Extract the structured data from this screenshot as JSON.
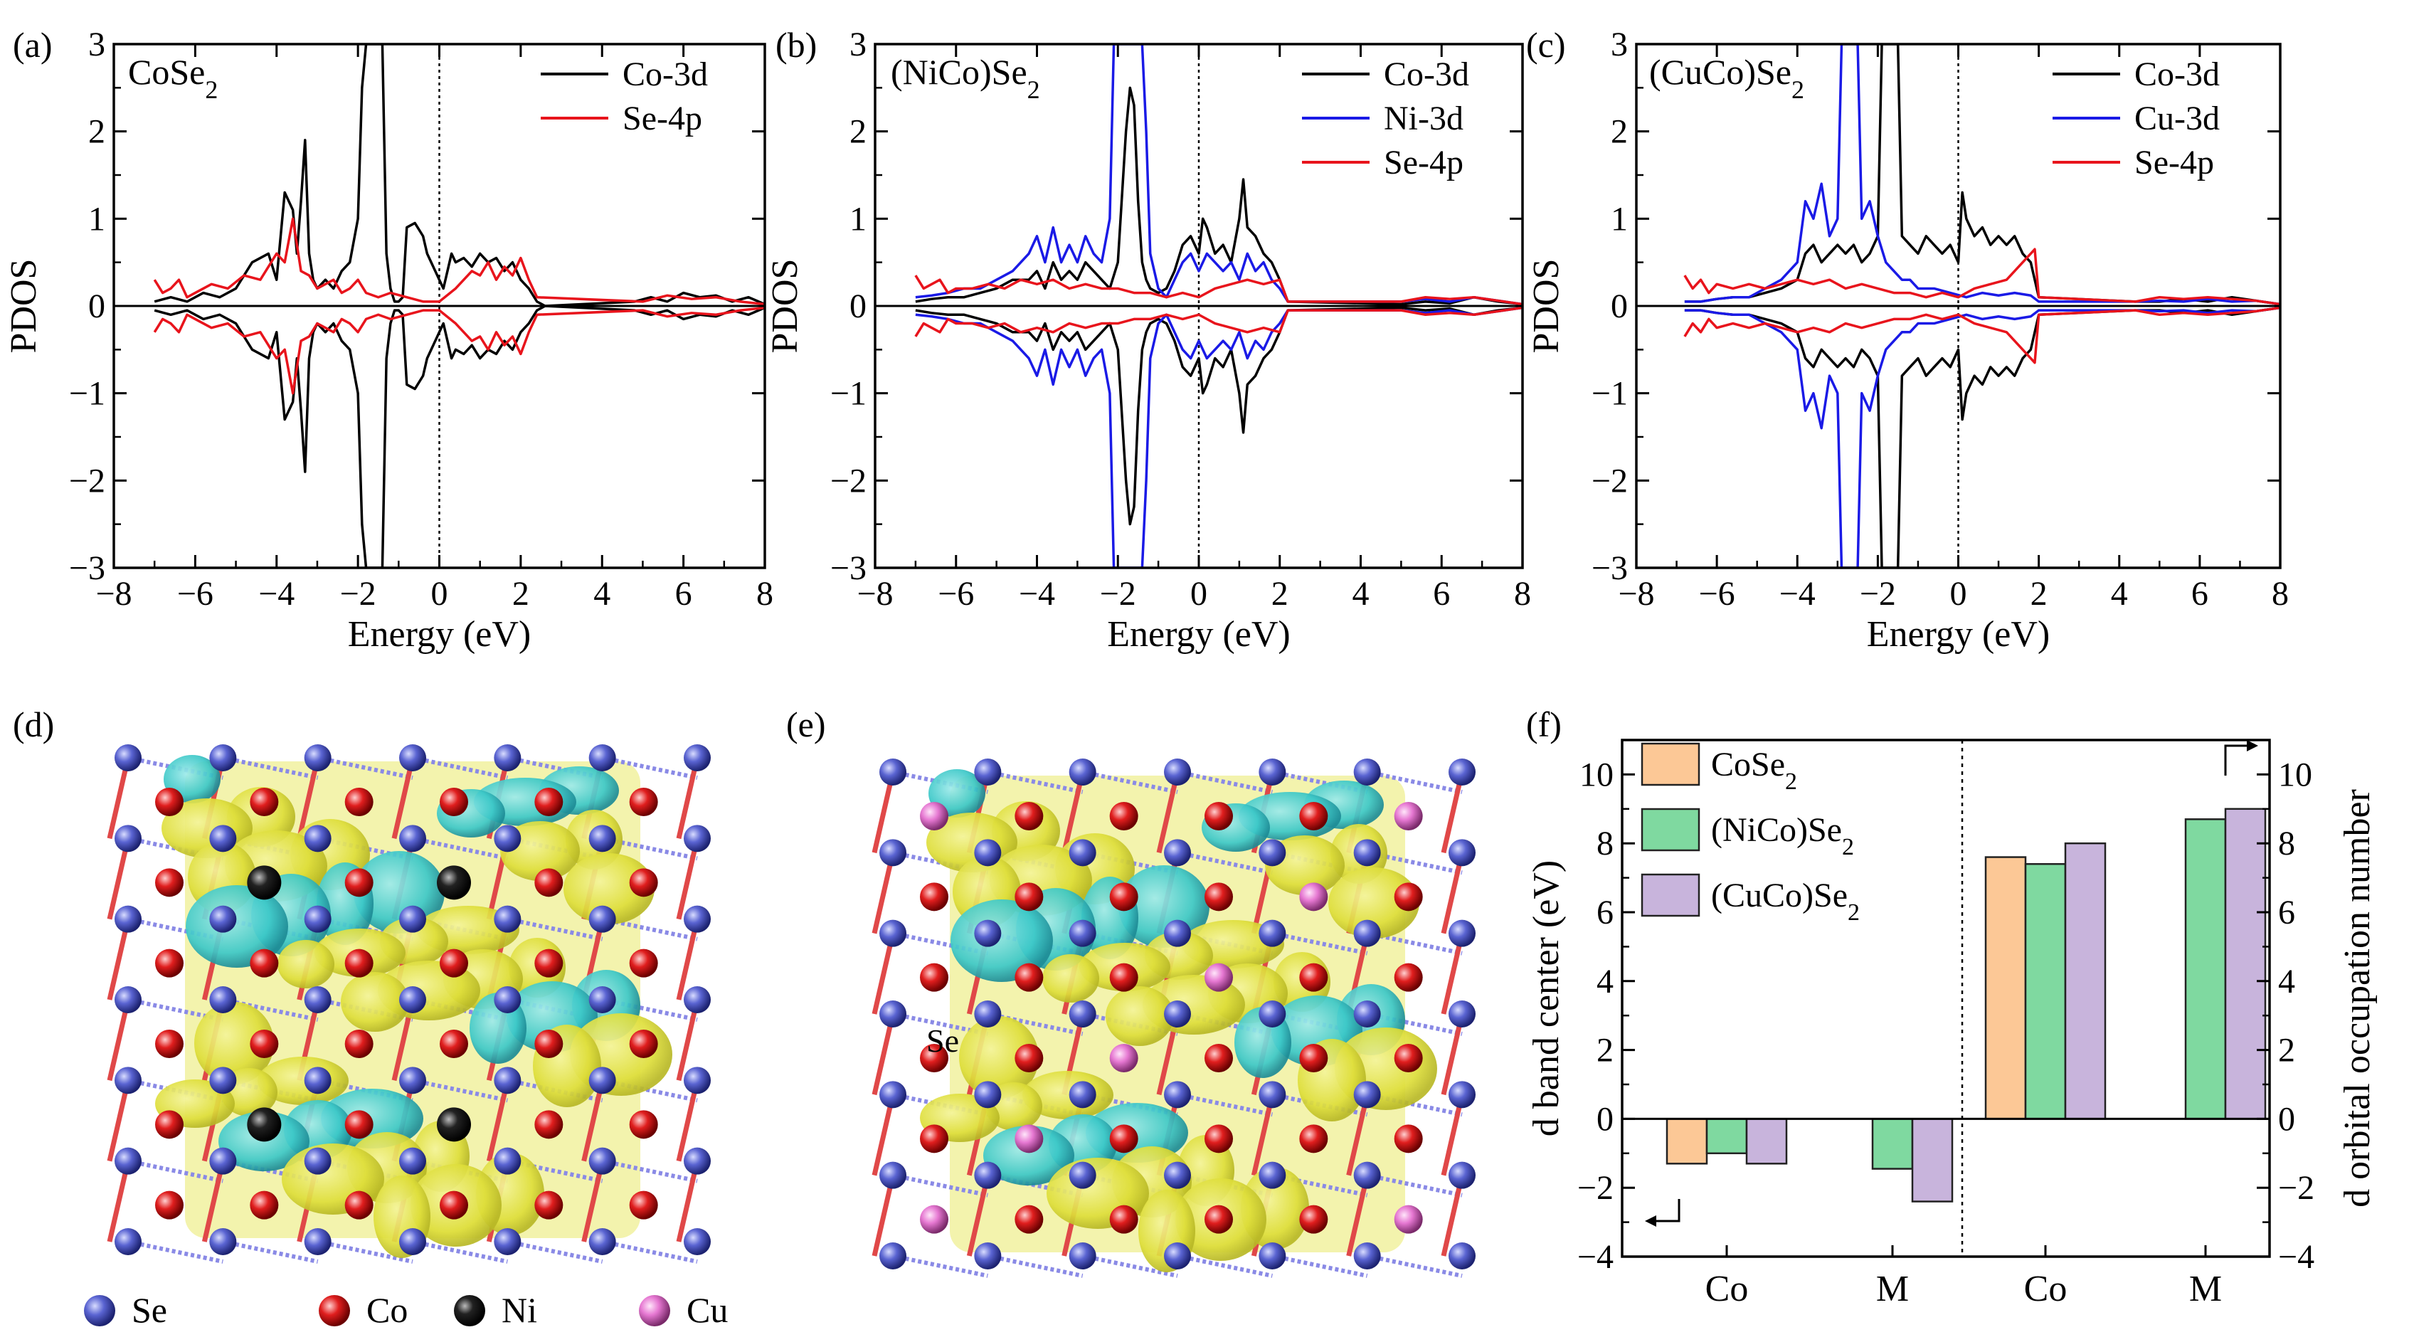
{
  "figure_labels": {
    "a": "(a)",
    "b": "(b)",
    "c": "(c)",
    "d": "(d)",
    "e": "(e)",
    "f": "(f)"
  },
  "colors": {
    "black": "#000000",
    "red": "#e8141c",
    "blue": "#1a1ae6",
    "orange": "#fcc896",
    "green": "#7fd9a0",
    "purple": "#c8b4dc",
    "se_atom": "#5a64d2",
    "co_atom": "#e01e1e",
    "ni_atom": "#1a1a1a",
    "cu_atom": "#e678d2",
    "iso_yellow": "#e6e63c",
    "iso_cyan": "#3cc8c8"
  },
  "chart_data": [
    {
      "id": "a",
      "type": "line",
      "title_main": "CoSe",
      "title_sub": "2",
      "title_tail": "",
      "xlabel": "Energy (eV)",
      "ylabel": "PDOS",
      "xlim": [
        -8,
        8
      ],
      "ylim": [
        -3,
        3
      ],
      "xticks": [
        -8,
        -6,
        -4,
        -2,
        0,
        2,
        4,
        6,
        8
      ],
      "yticks": [
        -3,
        -2,
        -1,
        0,
        1,
        2,
        3
      ],
      "fermi_level": 0,
      "series": [
        {
          "name": "Co-3d",
          "color": "#000000",
          "mirror": true,
          "x": [
            -7.0,
            -6.6,
            -6.2,
            -5.8,
            -5.4,
            -5.0,
            -4.6,
            -4.2,
            -4.0,
            -3.8,
            -3.6,
            -3.5,
            -3.4,
            -3.3,
            -3.2,
            -3.1,
            -3.0,
            -2.8,
            -2.6,
            -2.4,
            -2.2,
            -2.0,
            -1.9,
            -1.8,
            -1.7,
            -1.6,
            -1.5,
            -1.4,
            -1.3,
            -1.2,
            -1.1,
            -1.0,
            -0.9,
            -0.8,
            -0.6,
            -0.4,
            -0.3,
            -0.2,
            -0.1,
            0.0,
            0.1,
            0.2,
            0.3,
            0.4,
            0.6,
            0.8,
            1.0,
            1.2,
            1.4,
            1.6,
            1.8,
            2.0,
            2.2,
            2.4,
            2.6,
            4.8,
            5.2,
            5.6,
            6.0,
            6.4,
            6.8,
            7.2,
            7.6,
            8.0
          ],
          "y": [
            0.05,
            0.1,
            0.05,
            0.15,
            0.1,
            0.2,
            0.5,
            0.6,
            0.3,
            1.3,
            1.1,
            0.6,
            1.2,
            1.9,
            0.6,
            0.3,
            0.2,
            0.3,
            0.2,
            0.4,
            0.5,
            1.0,
            2.5,
            3.0,
            3.0,
            3.0,
            3.0,
            3.0,
            0.6,
            0.2,
            0.05,
            0.05,
            0.1,
            0.9,
            0.95,
            0.8,
            0.6,
            0.5,
            0.4,
            0.3,
            0.2,
            0.4,
            0.6,
            0.5,
            0.55,
            0.45,
            0.6,
            0.5,
            0.55,
            0.4,
            0.5,
            0.3,
            0.2,
            0.05,
            0.0,
            0.05,
            0.1,
            0.05,
            0.15,
            0.1,
            0.12,
            0.05,
            0.1,
            0.02
          ]
        },
        {
          "name": "Se-4p",
          "color": "#e8141c",
          "mirror": true,
          "x": [
            -7.0,
            -6.8,
            -6.6,
            -6.4,
            -6.2,
            -6.0,
            -5.6,
            -5.2,
            -4.8,
            -4.4,
            -4.0,
            -3.8,
            -3.6,
            -3.4,
            -3.2,
            -3.0,
            -2.8,
            -2.6,
            -2.4,
            -2.2,
            -2.0,
            -1.8,
            -1.5,
            -1.2,
            -0.8,
            -0.4,
            0.0,
            0.4,
            0.8,
            1.0,
            1.2,
            1.4,
            1.6,
            1.8,
            2.0,
            2.2,
            2.4,
            5.0,
            5.6,
            6.2,
            6.8,
            7.4,
            8.0
          ],
          "y": [
            0.3,
            0.15,
            0.2,
            0.3,
            0.1,
            0.15,
            0.25,
            0.2,
            0.35,
            0.3,
            0.6,
            0.5,
            1.0,
            0.4,
            0.35,
            0.2,
            0.25,
            0.3,
            0.15,
            0.2,
            0.3,
            0.15,
            0.1,
            0.15,
            0.1,
            0.05,
            0.05,
            0.2,
            0.4,
            0.35,
            0.5,
            0.3,
            0.45,
            0.35,
            0.55,
            0.3,
            0.1,
            0.05,
            0.12,
            0.08,
            0.1,
            0.05,
            0.02
          ]
        }
      ]
    },
    {
      "id": "b",
      "type": "line",
      "title_main": "(NiCo)Se",
      "title_sub": "2",
      "title_tail": "",
      "xlabel": "Energy (eV)",
      "ylabel": "PDOS",
      "xlim": [
        -8,
        8
      ],
      "ylim": [
        -3,
        3
      ],
      "xticks": [
        -8,
        -6,
        -4,
        -2,
        0,
        2,
        4,
        6,
        8
      ],
      "yticks": [
        -3,
        -2,
        -1,
        0,
        1,
        2,
        3
      ],
      "fermi_level": 0,
      "series": [
        {
          "name": "Co-3d",
          "color": "#000000",
          "mirror": true,
          "x": [
            -7.0,
            -6.6,
            -6.2,
            -5.8,
            -5.4,
            -5.0,
            -4.6,
            -4.2,
            -4.0,
            -3.8,
            -3.6,
            -3.4,
            -3.2,
            -3.0,
            -2.8,
            -2.6,
            -2.4,
            -2.2,
            -2.0,
            -1.8,
            -1.7,
            -1.6,
            -1.5,
            -1.4,
            -1.3,
            -1.2,
            -1.0,
            -0.8,
            -0.6,
            -0.4,
            -0.2,
            0.0,
            0.1,
            0.2,
            0.4,
            0.6,
            0.8,
            1.0,
            1.1,
            1.2,
            1.4,
            1.6,
            1.8,
            2.0,
            2.2,
            5.0,
            5.6,
            6.2,
            6.8,
            7.4,
            8.0
          ],
          "y": [
            0.05,
            0.08,
            0.1,
            0.1,
            0.15,
            0.2,
            0.3,
            0.3,
            0.4,
            0.2,
            0.5,
            0.3,
            0.4,
            0.3,
            0.5,
            0.4,
            0.3,
            0.2,
            0.5,
            2.0,
            2.5,
            2.3,
            1.2,
            0.5,
            0.3,
            0.2,
            0.15,
            0.2,
            0.4,
            0.7,
            0.8,
            0.6,
            1.0,
            0.9,
            0.6,
            0.7,
            0.5,
            1.0,
            1.45,
            0.9,
            0.8,
            0.6,
            0.5,
            0.3,
            0.05,
            0.02,
            0.05,
            0.03,
            0.1,
            0.05,
            0.02
          ]
        },
        {
          "name": "Ni-3d",
          "color": "#1a1ae6",
          "mirror": true,
          "x": [
            -7.0,
            -6.6,
            -6.2,
            -5.8,
            -5.4,
            -5.0,
            -4.6,
            -4.2,
            -4.0,
            -3.8,
            -3.6,
            -3.4,
            -3.2,
            -3.0,
            -2.8,
            -2.6,
            -2.4,
            -2.2,
            -2.1,
            -2.0,
            -1.9,
            -1.8,
            -1.6,
            -1.4,
            -1.3,
            -1.2,
            -1.0,
            -0.8,
            -0.6,
            -0.4,
            -0.2,
            0.0,
            0.2,
            0.4,
            0.6,
            0.8,
            1.0,
            1.2,
            1.4,
            1.6,
            1.8,
            2.0,
            2.2,
            5.0,
            5.6,
            6.2,
            6.8,
            7.4,
            8.0
          ],
          "y": [
            0.1,
            0.12,
            0.15,
            0.2,
            0.2,
            0.3,
            0.4,
            0.6,
            0.8,
            0.5,
            0.9,
            0.5,
            0.7,
            0.5,
            0.8,
            0.6,
            0.5,
            1.0,
            3.0,
            3.0,
            3.0,
            3.0,
            3.0,
            3.0,
            2.0,
            0.6,
            0.2,
            0.1,
            0.3,
            0.5,
            0.6,
            0.4,
            0.6,
            0.5,
            0.4,
            0.5,
            0.3,
            0.6,
            0.4,
            0.5,
            0.3,
            0.2,
            0.05,
            0.05,
            0.08,
            0.05,
            0.1,
            0.06,
            0.02
          ]
        },
        {
          "name": "Se-4p",
          "color": "#e8141c",
          "mirror": true,
          "x": [
            -7.0,
            -6.8,
            -6.6,
            -6.4,
            -6.2,
            -6.0,
            -5.6,
            -5.2,
            -4.8,
            -4.4,
            -4.0,
            -3.6,
            -3.2,
            -2.8,
            -2.4,
            -2.0,
            -1.6,
            -1.2,
            -0.8,
            -0.4,
            0.0,
            0.4,
            0.8,
            1.2,
            1.6,
            2.0,
            2.2,
            5.0,
            5.6,
            6.2,
            6.8,
            7.4,
            8.0
          ],
          "y": [
            0.35,
            0.2,
            0.25,
            0.3,
            0.15,
            0.2,
            0.2,
            0.25,
            0.2,
            0.3,
            0.25,
            0.3,
            0.2,
            0.25,
            0.2,
            0.2,
            0.15,
            0.15,
            0.1,
            0.15,
            0.1,
            0.2,
            0.25,
            0.3,
            0.25,
            0.3,
            0.05,
            0.05,
            0.1,
            0.08,
            0.1,
            0.06,
            0.02
          ]
        }
      ]
    },
    {
      "id": "c",
      "type": "line",
      "title_main": "(CuCo)Se",
      "title_sub": "2",
      "title_tail": "",
      "xlabel": "Energy (eV)",
      "ylabel": "PDOS",
      "xlim": [
        -8,
        8
      ],
      "ylim": [
        -3,
        3
      ],
      "xticks": [
        -8,
        -6,
        -4,
        -2,
        0,
        2,
        4,
        6,
        8
      ],
      "yticks": [
        -3,
        -2,
        -1,
        0,
        1,
        2,
        3
      ],
      "fermi_level": 0,
      "series": [
        {
          "name": "Co-3d",
          "color": "#000000",
          "mirror": true,
          "x": [
            -6.8,
            -6.4,
            -6.0,
            -5.6,
            -5.2,
            -4.8,
            -4.4,
            -4.0,
            -3.8,
            -3.6,
            -3.4,
            -3.2,
            -3.0,
            -2.8,
            -2.6,
            -2.4,
            -2.2,
            -2.0,
            -1.9,
            -1.8,
            -1.7,
            -1.6,
            -1.5,
            -1.4,
            -1.2,
            -1.0,
            -0.8,
            -0.6,
            -0.4,
            -0.2,
            0.0,
            0.1,
            0.2,
            0.4,
            0.6,
            0.8,
            1.0,
            1.2,
            1.4,
            1.6,
            1.8,
            2.0,
            4.4,
            5.0,
            5.6,
            6.2,
            6.8,
            7.4,
            8.0
          ],
          "y": [
            0.05,
            0.05,
            0.08,
            0.1,
            0.1,
            0.15,
            0.2,
            0.3,
            0.6,
            0.7,
            0.5,
            0.6,
            0.7,
            0.6,
            0.7,
            0.5,
            0.6,
            0.8,
            3.0,
            3.0,
            3.0,
            3.0,
            3.0,
            0.8,
            0.7,
            0.6,
            0.8,
            0.7,
            0.6,
            0.7,
            0.5,
            1.3,
            1.0,
            0.8,
            0.9,
            0.7,
            0.8,
            0.7,
            0.8,
            0.6,
            0.5,
            0.1,
            0.05,
            0.05,
            0.08,
            0.05,
            0.1,
            0.06,
            0.02
          ]
        },
        {
          "name": "Cu-3d",
          "color": "#1a1ae6",
          "mirror": true,
          "x": [
            -6.8,
            -6.4,
            -6.0,
            -5.6,
            -5.2,
            -4.8,
            -4.4,
            -4.0,
            -3.8,
            -3.6,
            -3.4,
            -3.2,
            -3.0,
            -2.9,
            -2.8,
            -2.6,
            -2.5,
            -2.4,
            -2.2,
            -2.0,
            -1.8,
            -1.6,
            -1.4,
            -1.2,
            -1.0,
            -0.6,
            -0.2,
            0.2,
            0.6,
            1.0,
            1.4,
            1.8,
            2.0,
            4.4,
            5.0,
            5.6,
            6.2,
            6.8,
            7.4,
            8.0
          ],
          "y": [
            0.05,
            0.05,
            0.08,
            0.1,
            0.1,
            0.2,
            0.3,
            0.5,
            1.2,
            1.0,
            1.4,
            0.8,
            1.0,
            3.0,
            3.0,
            3.0,
            3.0,
            1.0,
            1.2,
            0.8,
            0.5,
            0.4,
            0.3,
            0.3,
            0.2,
            0.2,
            0.15,
            0.1,
            0.15,
            0.12,
            0.15,
            0.12,
            0.05,
            0.05,
            0.06,
            0.05,
            0.08,
            0.05,
            0.06,
            0.02
          ]
        },
        {
          "name": "Se-4p",
          "color": "#e8141c",
          "mirror": true,
          "x": [
            -6.8,
            -6.6,
            -6.4,
            -6.2,
            -6.0,
            -5.6,
            -5.2,
            -4.8,
            -4.4,
            -4.0,
            -3.6,
            -3.2,
            -2.8,
            -2.4,
            -2.0,
            -1.6,
            -1.2,
            -0.8,
            -0.4,
            0.0,
            0.4,
            0.8,
            1.2,
            1.6,
            1.8,
            1.9,
            2.0,
            4.4,
            5.0,
            5.6,
            6.2,
            6.8,
            7.4,
            8.0
          ],
          "y": [
            0.35,
            0.2,
            0.3,
            0.15,
            0.25,
            0.2,
            0.25,
            0.2,
            0.25,
            0.3,
            0.25,
            0.3,
            0.2,
            0.25,
            0.2,
            0.15,
            0.15,
            0.1,
            0.15,
            0.1,
            0.2,
            0.25,
            0.3,
            0.5,
            0.6,
            0.65,
            0.1,
            0.05,
            0.1,
            0.08,
            0.1,
            0.08,
            0.06,
            0.02
          ]
        }
      ]
    },
    {
      "id": "f",
      "type": "bar",
      "groups": [
        "Co",
        "M",
        "Co",
        "M"
      ],
      "ylabel_left": "d band center (eV)",
      "ylabel_right": "d orbital occupation number",
      "ylim": [
        -4,
        11
      ],
      "yticks": [
        -4,
        -2,
        0,
        2,
        4,
        6,
        8,
        10
      ],
      "series": [
        {
          "name": "CoSe",
          "sub": "2",
          "color": "#fcc896",
          "values": [
            -1.3,
            null,
            7.6,
            null
          ]
        },
        {
          "name": "(NiCo)Se",
          "sub": "2",
          "color": "#7fd9a0",
          "values": [
            -1.0,
            -1.45,
            7.4,
            8.7
          ]
        },
        {
          "name": "(CuCo)Se",
          "sub": "2",
          "color": "#c8b4dc",
          "values": [
            -1.3,
            -2.4,
            8.0,
            9.0
          ]
        }
      ]
    }
  ],
  "structure_legend": [
    {
      "label": "Se",
      "color_key": "se_atom"
    },
    {
      "label": "Co",
      "color_key": "co_atom"
    },
    {
      "label": "Ni",
      "color_key": "ni_atom"
    },
    {
      "label": "Cu",
      "color_key": "cu_atom"
    }
  ],
  "panel_e_annotation": "Se"
}
